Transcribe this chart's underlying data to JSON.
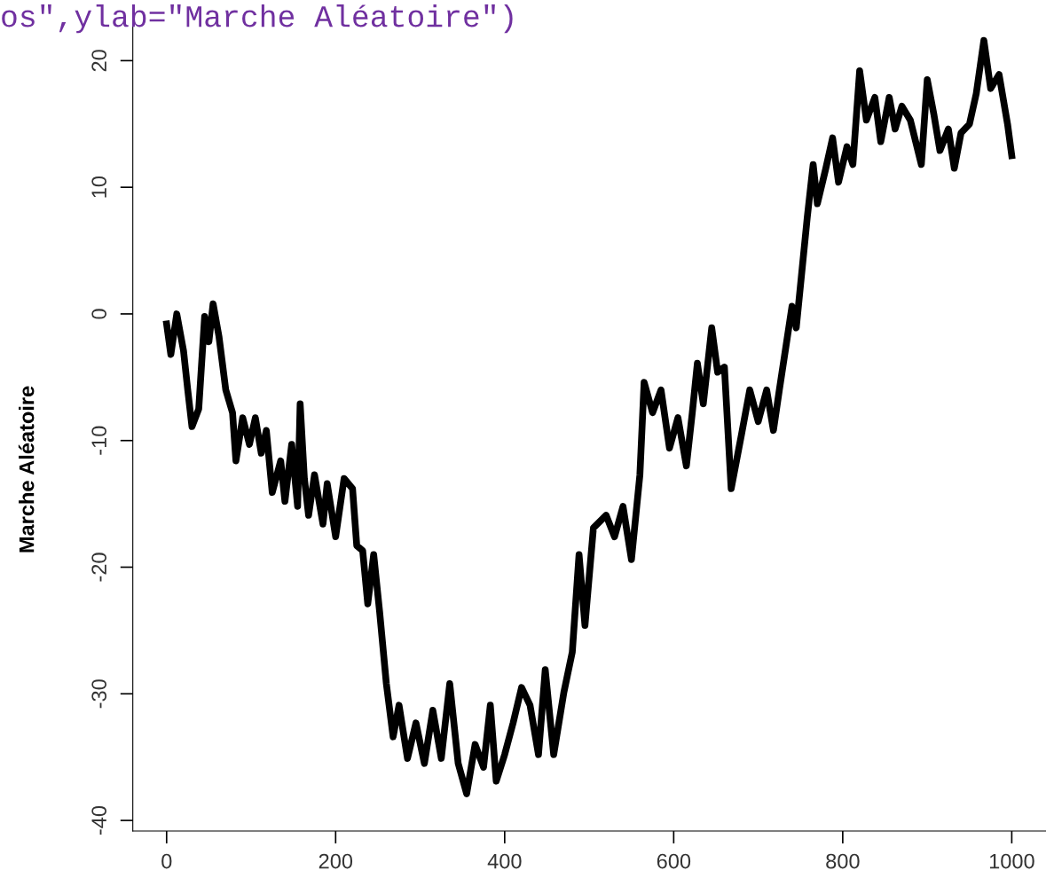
{
  "chart_data": {
    "type": "line",
    "ylabel": "Marche Aléatoire",
    "annotations": [
      "os\",ylab=\"Marche Aléatoire\")"
    ],
    "x": [
      0,
      5,
      12,
      20,
      25,
      30,
      38,
      45,
      50,
      55,
      62,
      70,
      78,
      82,
      90,
      98,
      105,
      112,
      118,
      125,
      135,
      140,
      148,
      155,
      158,
      163,
      168,
      175,
      185,
      190,
      200,
      210,
      220,
      225,
      232,
      238,
      245,
      252,
      260,
      268,
      275,
      285,
      295,
      305,
      315,
      325,
      335,
      345,
      355,
      365,
      375,
      383,
      390,
      400,
      410,
      420,
      430,
      440,
      448,
      458,
      470,
      480,
      488,
      495,
      505,
      520,
      530,
      540,
      550,
      560,
      565,
      575,
      585,
      595,
      605,
      615,
      622,
      628,
      635,
      645,
      652,
      660,
      668,
      680,
      690,
      700,
      710,
      718,
      725,
      740,
      745,
      758,
      765,
      770,
      780,
      788,
      795,
      805,
      812,
      820,
      828,
      838,
      845,
      855,
      862,
      870,
      880,
      893,
      900,
      908,
      915,
      925,
      932,
      940,
      950,
      958,
      967,
      975,
      985,
      995,
      1000
    ],
    "series": [
      {
        "color": "#000000",
        "values": [
          -0.8,
          -3.2,
          0,
          -2.9,
          -6,
          -8.9,
          -7.5,
          -0.2,
          -2.2,
          0.8,
          -1.8,
          -6,
          -7.8,
          -11.6,
          -8.2,
          -10.3,
          -8.2,
          -11,
          -9.2,
          -14.1,
          -11.6,
          -14.8,
          -10.3,
          -15.2,
          -7.1,
          -13,
          -15.9,
          -12.7,
          -16.6,
          -13.4,
          -17.6,
          -13,
          -13.8,
          -18.3,
          -18.7,
          -22.9,
          -19,
          -23.5,
          -29.2,
          -33.4,
          -30.9,
          -35.1,
          -32.3,
          -35.5,
          -31.3,
          -35.1,
          -29.2,
          -35.5,
          -37.9,
          -34,
          -35.8,
          -30.9,
          -36.9,
          -34.8,
          -32.3,
          -29.5,
          -30.9,
          -34.8,
          -28.1,
          -34.8,
          -29.9,
          -26.7,
          -19,
          -24.6,
          -16.9,
          -15.9,
          -17.6,
          -15.2,
          -19.4,
          -12.7,
          -5.4,
          -7.8,
          -6,
          -10.6,
          -8.2,
          -12,
          -7.8,
          -3.9,
          -7.1,
          -1.1,
          -4.6,
          -4.2,
          -13.8,
          -9.6,
          -6,
          -8.5,
          -6,
          -9.2,
          -6,
          0.6,
          -1.1,
          7.6,
          11.8,
          8.7,
          11.5,
          13.9,
          10.4,
          13.2,
          11.8,
          19.2,
          15.3,
          17.1,
          13.6,
          17.1,
          14.6,
          16.4,
          15.3,
          11.8,
          18.5,
          15.7,
          12.9,
          14.6,
          11.5,
          14.3,
          15,
          17.4,
          21.6,
          17.8,
          18.9,
          15,
          12.5
        ]
      }
    ],
    "xlim": [
      -40,
      1040
    ],
    "xticks": [
      0,
      200,
      400,
      600,
      800,
      1000
    ],
    "ylim": [
      -40.84,
      23.6
    ],
    "yticks": [
      -40,
      -30,
      -20,
      -10,
      0,
      10,
      20
    ],
    "grid": false,
    "marker": "none",
    "line_style": "solid"
  }
}
